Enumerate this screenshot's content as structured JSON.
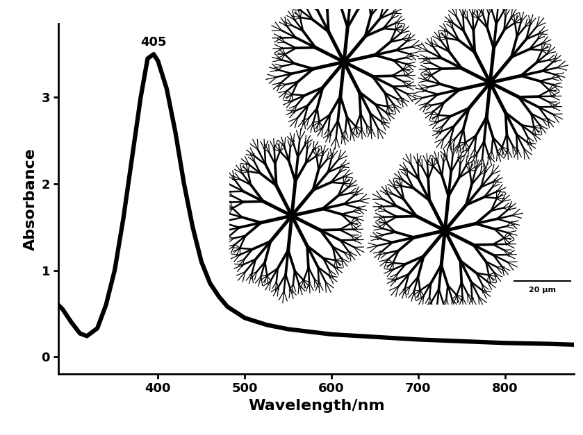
{
  "chart_data": {
    "type": "line",
    "x_label": "Wavelength/nm",
    "y_label": "Absorbance",
    "annotations": [
      "405",
      "20 μm"
    ],
    "x": [
      285,
      290,
      300,
      310,
      318,
      330,
      340,
      350,
      360,
      370,
      380,
      388,
      395,
      400,
      410,
      420,
      430,
      440,
      450,
      460,
      470,
      480,
      500,
      525,
      550,
      600,
      650,
      700,
      750,
      800,
      850,
      880
    ],
    "values": [
      0.6,
      0.55,
      0.4,
      0.27,
      0.24,
      0.33,
      0.6,
      1.0,
      1.6,
      2.3,
      3.0,
      3.45,
      3.5,
      3.42,
      3.1,
      2.6,
      2.0,
      1.5,
      1.1,
      0.85,
      0.7,
      0.58,
      0.45,
      0.37,
      0.32,
      0.26,
      0.23,
      0.2,
      0.18,
      0.16,
      0.15,
      0.14
    ],
    "color": "#000000",
    "xlim": [
      285,
      880
    ],
    "ylim": [
      -0.2,
      3.85
    ],
    "xticks": [
      400,
      500,
      600,
      700,
      800
    ],
    "yticks": [
      0,
      1,
      2,
      3
    ],
    "grid": false
  }
}
